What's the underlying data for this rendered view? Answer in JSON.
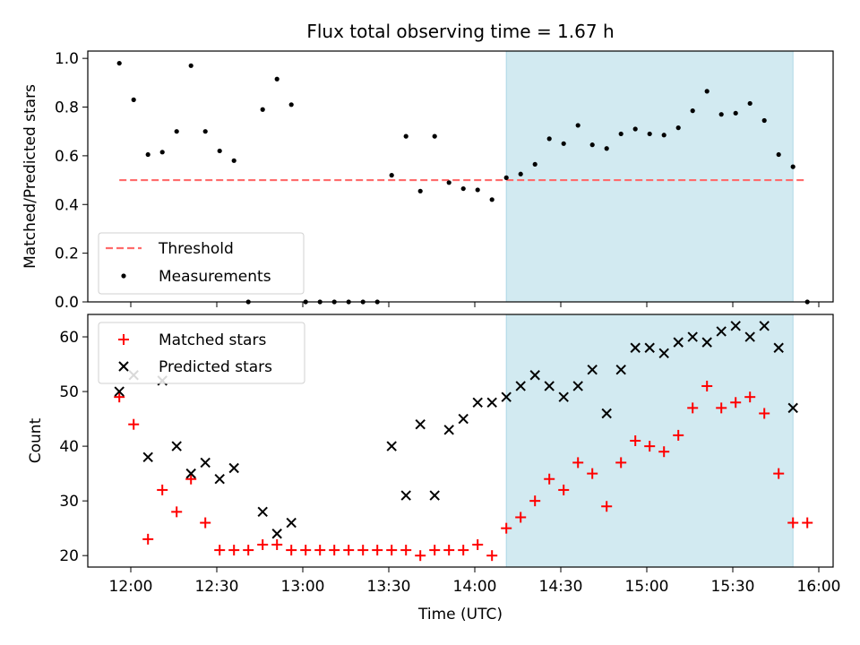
{
  "chart_data": [
    {
      "type": "scatter",
      "title": "Flux total observing time = 1.67 h",
      "ylabel": "Matched/Predicted stars",
      "xlabel": "",
      "x_is_time": true,
      "xlim": [
        "11:45",
        "16:05"
      ],
      "ylim": [
        0,
        1.03
      ],
      "yticks": [
        0.0,
        0.2,
        0.4,
        0.6,
        0.8,
        1.0
      ],
      "ytick_labels": [
        "0.0",
        "0.2",
        "0.4",
        "0.6",
        "0.8",
        "1.0"
      ],
      "xtick_values": [
        "12:00",
        "12:30",
        "13:00",
        "13:30",
        "14:00",
        "14:30",
        "15:00",
        "15:30",
        "16:00"
      ],
      "show_xtick_labels": false,
      "highlight_span": [
        "14:11",
        "15:51"
      ],
      "highlight_color": "#add8e6",
      "grid": false,
      "legend_position": "lower-left",
      "series": [
        {
          "name": "Threshold",
          "kind": "dashed-line",
          "color": "#ff6b6b",
          "x": [
            "11:56",
            "15:56"
          ],
          "y": [
            0.5,
            0.5
          ]
        },
        {
          "name": "Measurements",
          "kind": "dot",
          "color": "#000000",
          "x": [
            "11:56",
            "12:01",
            "12:06",
            "12:11",
            "12:16",
            "12:21",
            "12:26",
            "12:31",
            "12:36",
            "12:41",
            "12:46",
            "12:51",
            "12:56",
            "13:01",
            "13:06",
            "13:11",
            "13:16",
            "13:21",
            "13:26",
            "13:31",
            "13:36",
            "13:41",
            "13:46",
            "13:51",
            "13:56",
            "14:01",
            "14:06",
            "14:11",
            "14:16",
            "14:21",
            "14:26",
            "14:31",
            "14:36",
            "14:41",
            "14:46",
            "14:51",
            "14:56",
            "15:01",
            "15:06",
            "15:11",
            "15:16",
            "15:21",
            "15:26",
            "15:31",
            "15:36",
            "15:41",
            "15:46",
            "15:51",
            "15:56"
          ],
          "y": [
            0.98,
            0.83,
            0.605,
            0.615,
            0.7,
            0.97,
            0.7,
            0.62,
            0.58,
            0.0,
            0.79,
            0.915,
            0.81,
            0.0,
            0.0,
            0.0,
            0.0,
            0.0,
            0.0,
            0.52,
            0.68,
            0.455,
            0.68,
            0.49,
            0.465,
            0.46,
            0.42,
            0.51,
            0.525,
            0.565,
            0.67,
            0.65,
            0.725,
            0.645,
            0.63,
            0.69,
            0.71,
            0.69,
            0.685,
            0.715,
            0.785,
            0.865,
            0.77,
            0.775,
            0.815,
            0.745,
            0.605,
            0.555,
            0.0
          ]
        }
      ]
    },
    {
      "type": "scatter",
      "title": "",
      "ylabel": "Count",
      "xlabel": "Time (UTC)",
      "x_is_time": true,
      "xlim": [
        "11:45",
        "16:05"
      ],
      "ylim": [
        17.9,
        64.1
      ],
      "yticks": [
        20,
        30,
        40,
        50,
        60
      ],
      "ytick_labels": [
        "20",
        "30",
        "40",
        "50",
        "60"
      ],
      "xtick_values": [
        "12:00",
        "12:30",
        "13:00",
        "13:30",
        "14:00",
        "14:30",
        "15:00",
        "15:30",
        "16:00"
      ],
      "xtick_labels": [
        "12:00",
        "12:30",
        "13:00",
        "13:30",
        "14:00",
        "14:30",
        "15:00",
        "15:30",
        "16:00"
      ],
      "show_xtick_labels": true,
      "highlight_span": [
        "14:11",
        "15:51"
      ],
      "highlight_color": "#add8e6",
      "grid": false,
      "legend_position": "upper-left",
      "series": [
        {
          "name": "Matched stars",
          "kind": "plus",
          "color": "#ff0000",
          "x": [
            "11:56",
            "12:01",
            "12:06",
            "12:11",
            "12:16",
            "12:21",
            "12:26",
            "12:31",
            "12:36",
            "12:41",
            "12:46",
            "12:51",
            "12:56",
            "13:01",
            "13:06",
            "13:11",
            "13:16",
            "13:21",
            "13:26",
            "13:31",
            "13:36",
            "13:41",
            "13:46",
            "13:51",
            "13:56",
            "14:01",
            "14:06",
            "14:11",
            "14:16",
            "14:21",
            "14:26",
            "14:31",
            "14:36",
            "14:41",
            "14:46",
            "14:51",
            "14:56",
            "15:01",
            "15:06",
            "15:11",
            "15:16",
            "15:21",
            "15:26",
            "15:31",
            "15:36",
            "15:41",
            "15:46",
            "15:51",
            "15:56"
          ],
          "y": [
            49,
            44,
            23,
            32,
            28,
            34,
            26,
            21,
            21,
            21,
            22,
            22,
            21,
            21,
            21,
            21,
            21,
            21,
            21,
            21,
            21,
            20,
            21,
            21,
            21,
            22,
            20,
            25,
            27,
            30,
            34,
            32,
            37,
            35,
            29,
            37,
            41,
            40,
            39,
            42,
            47,
            51,
            47,
            48,
            49,
            46,
            35,
            26,
            26
          ]
        },
        {
          "name": "Predicted stars",
          "kind": "x",
          "color": "#000000",
          "x": [
            "11:56",
            "12:01",
            "12:06",
            "12:11",
            "12:16",
            "12:21",
            "12:26",
            "12:31",
            "12:36",
            "12:46",
            "12:51",
            "12:56",
            "13:31",
            "13:36",
            "13:41",
            "13:46",
            "13:51",
            "13:56",
            "14:01",
            "14:06",
            "14:11",
            "14:16",
            "14:21",
            "14:26",
            "14:31",
            "14:36",
            "14:41",
            "14:46",
            "14:51",
            "14:56",
            "15:01",
            "15:06",
            "15:11",
            "15:16",
            "15:21",
            "15:26",
            "15:31",
            "15:36",
            "15:41",
            "15:46",
            "15:51"
          ],
          "y": [
            50,
            53,
            38,
            52,
            40,
            35,
            37,
            34,
            36,
            28,
            24,
            26,
            40,
            31,
            44,
            31,
            43,
            45,
            48,
            48,
            49,
            51,
            53,
            51,
            49,
            51,
            54,
            46,
            54,
            58,
            58,
            57,
            59,
            60,
            59,
            61,
            62,
            60,
            62,
            58,
            47
          ]
        }
      ]
    }
  ]
}
